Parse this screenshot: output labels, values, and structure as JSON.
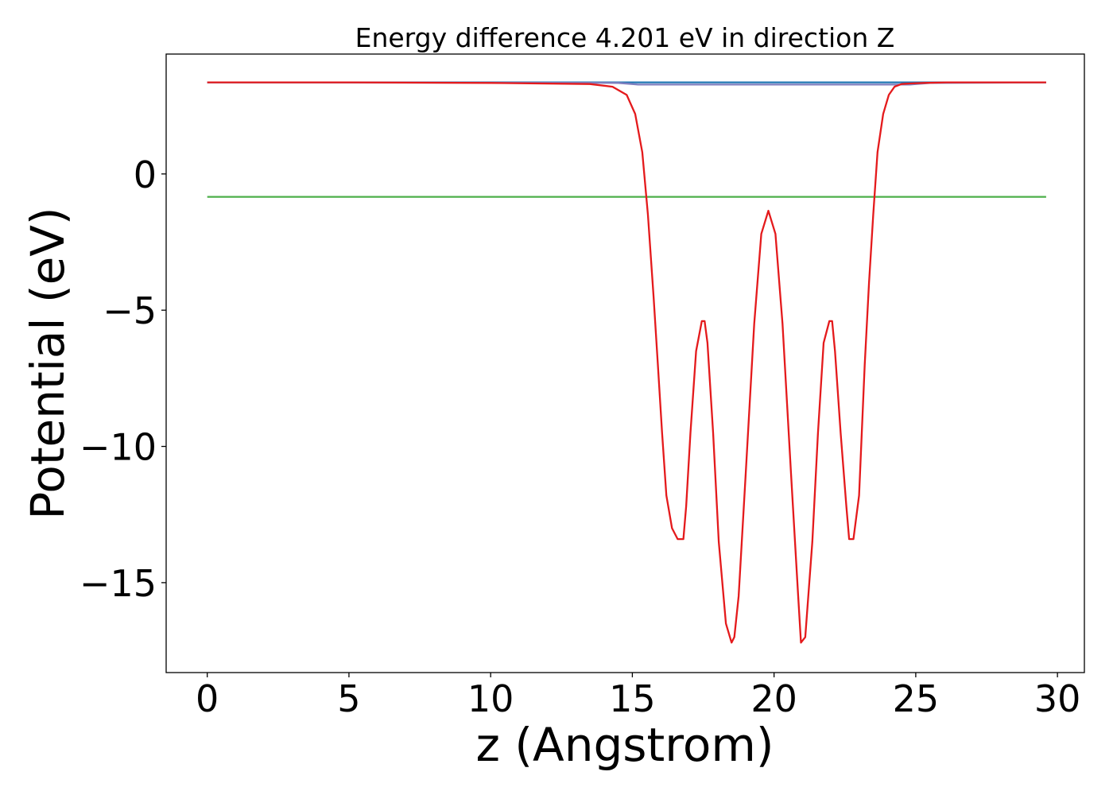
{
  "chart_data": {
    "type": "line",
    "title": "Energy difference 4.201 eV in direction Z",
    "xlabel": "z (Angstrom)",
    "ylabel": "Potential (eV)",
    "xlim": [
      -1.45,
      30.95
    ],
    "ylim": [
      -18.3,
      4.4
    ],
    "xticks": [
      0,
      5,
      10,
      15,
      20,
      25,
      30
    ],
    "xtick_labels": [
      "0",
      "5",
      "10",
      "15",
      "20",
      "25",
      "30"
    ],
    "yticks": [
      0,
      -5,
      -10,
      -15
    ],
    "ytick_labels": [
      "0",
      "−5",
      "−10",
      "−15"
    ],
    "grid": false,
    "legend": "none",
    "series": [
      {
        "color": "#1f77b4",
        "x": [
          0,
          29.6
        ],
        "y": [
          3.36,
          3.36
        ]
      },
      {
        "color": "#4daf4a",
        "x": [
          0,
          29.6
        ],
        "y": [
          -0.84,
          -0.84
        ]
      },
      {
        "color": "#7f7fbf",
        "x": [
          0,
          14.5,
          15.0,
          15.2,
          24.8,
          25.0,
          25.5,
          29.6
        ],
        "y": [
          3.36,
          3.34,
          3.3,
          3.28,
          3.28,
          3.3,
          3.34,
          3.36
        ]
      },
      {
        "color": "#e41a1c",
        "x": [
          0,
          5,
          10,
          13.5,
          14.3,
          14.8,
          15.1,
          15.35,
          15.55,
          15.75,
          15.9,
          16.05,
          16.2,
          16.4,
          16.6,
          16.8,
          16.9,
          17.05,
          17.25,
          17.45,
          17.55,
          17.65,
          17.85,
          18.05,
          18.3,
          18.5,
          18.6,
          18.75,
          19.0,
          19.3,
          19.55,
          19.8,
          20.05,
          20.3,
          20.6,
          20.85,
          20.95,
          21.1,
          21.35,
          21.55,
          21.75,
          21.95,
          22.05,
          22.15,
          22.35,
          22.55,
          22.65,
          22.8,
          23.0,
          23.2,
          23.35,
          23.5,
          23.65,
          23.85,
          24.05,
          24.25,
          24.5,
          24.8,
          25.3,
          26.1,
          29.6
        ],
        "y": [
          3.36,
          3.36,
          3.34,
          3.3,
          3.2,
          2.9,
          2.2,
          0.8,
          -1.5,
          -4.5,
          -7.0,
          -9.5,
          -11.8,
          -13.0,
          -13.4,
          -13.4,
          -12.2,
          -9.5,
          -6.5,
          -5.4,
          -5.4,
          -6.2,
          -9.5,
          -13.5,
          -16.5,
          -17.2,
          -17.0,
          -15.5,
          -11.0,
          -5.5,
          -2.2,
          -1.35,
          -2.2,
          -5.5,
          -11.0,
          -15.5,
          -17.2,
          -17.0,
          -13.5,
          -9.5,
          -6.2,
          -5.4,
          -5.4,
          -6.5,
          -9.5,
          -12.2,
          -13.4,
          -13.4,
          -11.8,
          -7.0,
          -4.0,
          -1.5,
          0.8,
          2.2,
          2.9,
          3.2,
          3.3,
          3.32,
          3.34,
          3.36,
          3.36
        ]
      }
    ]
  }
}
